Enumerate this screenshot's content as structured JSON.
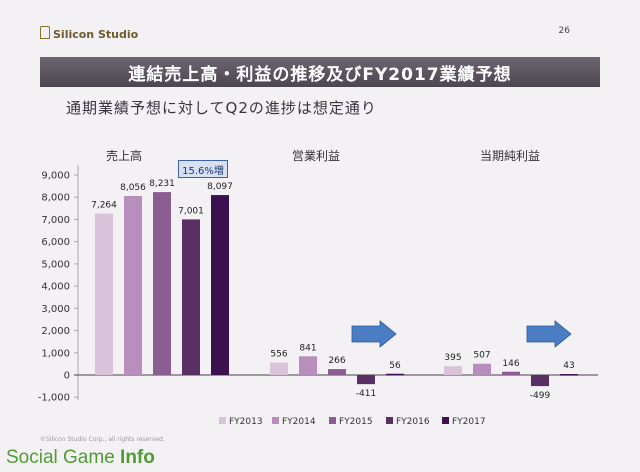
{
  "header": {
    "logo_text": "Silicon Studio",
    "page_number": "26"
  },
  "title": "連結売上高・利益の推移及びFY2017業績予想",
  "subtitle": "通期業績予想に対してQ2の進捗は想定通り",
  "callout": "15.6%増",
  "footer": {
    "copyright": "©Silicon Studio Corp., all rights reserved.",
    "watermark_main": "Social Game ",
    "watermark_bold": "Info"
  },
  "colors": {
    "FY2013": "#d8c3da",
    "FY2014": "#b88ebd",
    "FY2015": "#8b5e91",
    "FY2016": "#5a2f64",
    "FY2017": "#3b1150",
    "arrow": "#4a7dc3"
  },
  "chart_data": {
    "type": "bar",
    "categories": [
      "売上高",
      "営業利益",
      "当期純利益"
    ],
    "series": [
      {
        "name": "FY2013",
        "values": [
          7264,
          556,
          395
        ]
      },
      {
        "name": "FY2014",
        "values": [
          8056,
          841,
          507
        ]
      },
      {
        "name": "FY2015",
        "values": [
          8231,
          266,
          146
        ]
      },
      {
        "name": "FY2016",
        "values": [
          7001,
          -411,
          -499
        ]
      },
      {
        "name": "FY2017",
        "values": [
          8097,
          56,
          43
        ]
      }
    ],
    "data_labels": [
      [
        "7,264",
        "8,056",
        "8,231",
        "7,001",
        "8,097"
      ],
      [
        "556",
        "841",
        "266",
        "-411",
        "56"
      ],
      [
        "395",
        "507",
        "146",
        "-499",
        "43"
      ]
    ],
    "yticks": [
      "9,000",
      "8,000",
      "7,000",
      "6,000",
      "5,000",
      "4,000",
      "3,000",
      "2,000",
      "1,000",
      "0",
      "-1,000"
    ],
    "ylim": [
      -1000,
      9000
    ],
    "legend_position": "bottom"
  }
}
